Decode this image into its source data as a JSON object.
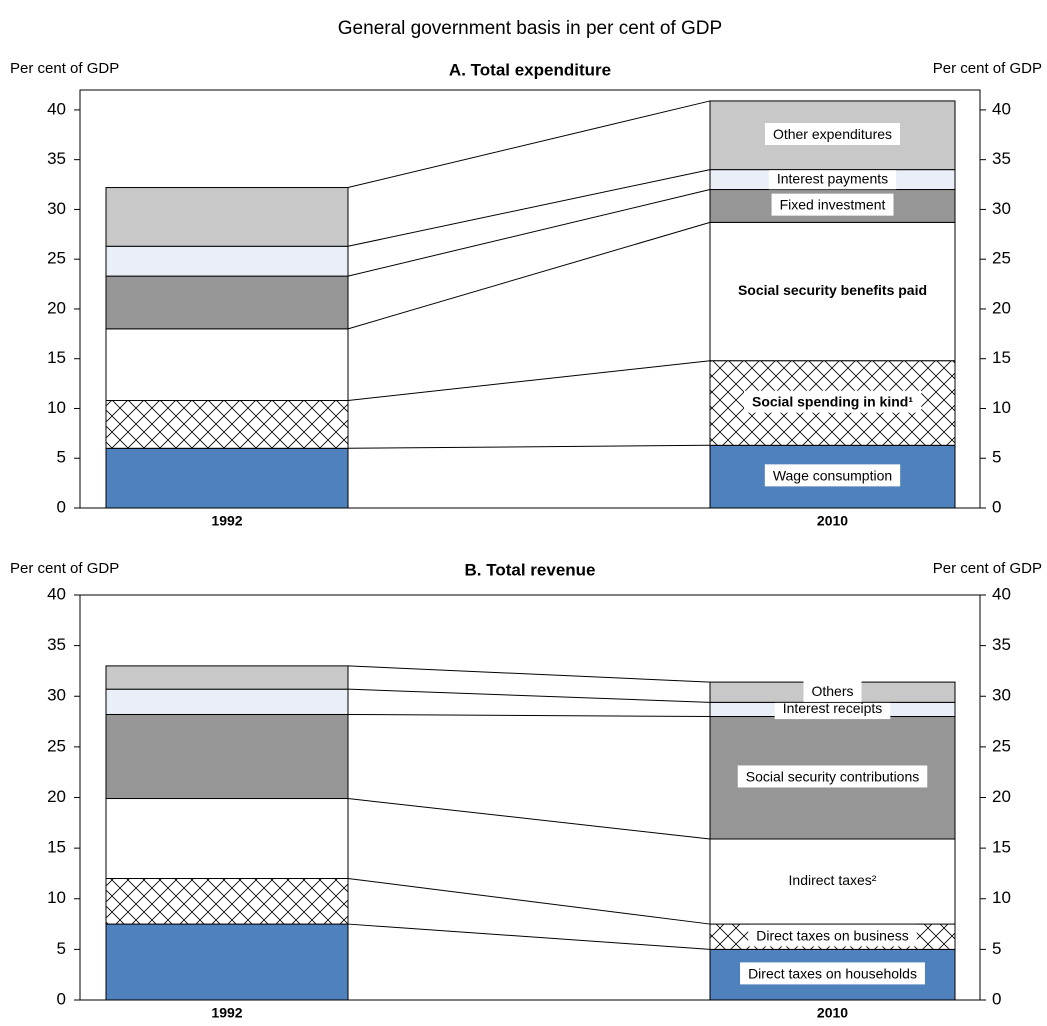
{
  "title": "General government basis in per cent of GDP",
  "chart_data": [
    {
      "type": "bar",
      "stacked": true,
      "title": "A. Total expenditure",
      "ylabel": "Per cent of GDP",
      "y2label": "Per cent of GDP",
      "categories": [
        "1992",
        "2010"
      ],
      "ylim": [
        0,
        42
      ],
      "yticks": [
        0,
        5,
        10,
        15,
        20,
        25,
        30,
        35,
        40
      ],
      "y2lim": [
        0,
        42
      ],
      "y2ticks": [
        0,
        5,
        10,
        15,
        20,
        25,
        30,
        35,
        40
      ],
      "series": [
        {
          "name": "Wage consumption",
          "color": "#4f81bd",
          "values": [
            6.0,
            6.3
          ]
        },
        {
          "name": "Social spending in kind¹",
          "color": "#ffffff",
          "pattern": "crosshatch",
          "bold": true,
          "values": [
            4.8,
            8.5
          ]
        },
        {
          "name": "Social security benefits paid",
          "color": "#ffffff",
          "bold": true,
          "values": [
            7.2,
            13.9
          ]
        },
        {
          "name": "Fixed investment",
          "color": "#969696",
          "values": [
            5.3,
            3.3
          ]
        },
        {
          "name": "Interest payments",
          "color": "#e9eef7",
          "values": [
            3.0,
            2.0
          ]
        },
        {
          "name": "Other expenditures",
          "color": "#c8c8c8",
          "values": [
            5.9,
            6.9
          ]
        }
      ]
    },
    {
      "type": "bar",
      "stacked": true,
      "title": "B. Total revenue",
      "ylabel": "Per cent of GDP",
      "y2label": "Per cent of GDP",
      "categories": [
        "1992",
        "2010"
      ],
      "ylim": [
        0,
        40
      ],
      "yticks": [
        0,
        5,
        10,
        15,
        20,
        25,
        30,
        35,
        40
      ],
      "y2lim": [
        0,
        40
      ],
      "y2ticks": [
        0,
        5,
        10,
        15,
        20,
        25,
        30,
        35,
        40
      ],
      "series": [
        {
          "name": "Direct taxes on households",
          "color": "#4f81bd",
          "values": [
            7.5,
            5.0
          ]
        },
        {
          "name": "Direct taxes on business",
          "color": "#ffffff",
          "pattern": "crosshatch",
          "values": [
            4.5,
            2.5
          ]
        },
        {
          "name": "Indirect taxes²",
          "color": "#ffffff",
          "values": [
            7.9,
            8.4
          ]
        },
        {
          "name": "Social security contributions",
          "color": "#969696",
          "values": [
            8.3,
            12.1
          ]
        },
        {
          "name": "Interest receipts",
          "color": "#e9eef7",
          "values": [
            2.5,
            1.4
          ]
        },
        {
          "name": "Others",
          "color": "#c8c8c8",
          "values": [
            2.3,
            2.0
          ]
        }
      ]
    }
  ]
}
